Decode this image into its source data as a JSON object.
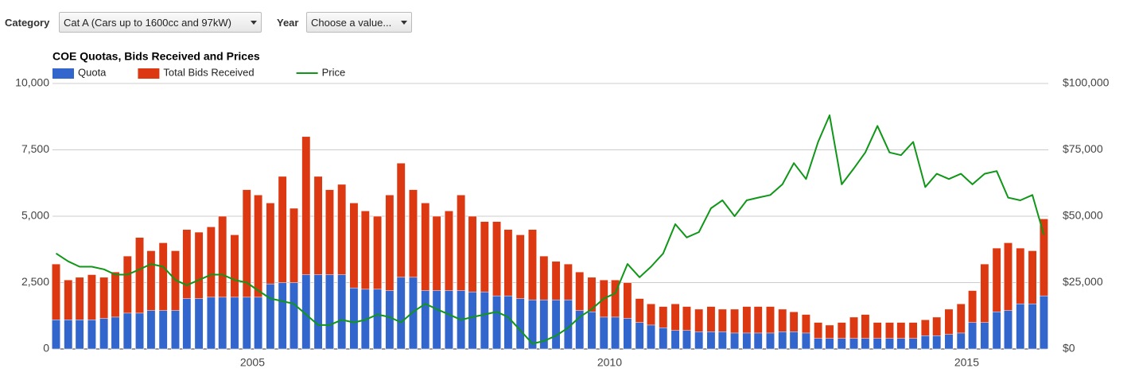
{
  "controls": {
    "category_label": "Category",
    "category_value": "Cat A (Cars up to 1600cc and 97kW)",
    "year_label": "Year",
    "year_value": "Choose a value..."
  },
  "chart_data": {
    "type": "bar-line",
    "title": "COE Quotas, Bids Received and Prices",
    "x": [
      2002.25,
      2002.42,
      2002.58,
      2002.75,
      2002.92,
      2003.08,
      2003.25,
      2003.42,
      2003.58,
      2003.75,
      2003.92,
      2004.08,
      2004.25,
      2004.42,
      2004.58,
      2004.75,
      2004.92,
      2005.08,
      2005.25,
      2005.42,
      2005.58,
      2005.75,
      2005.92,
      2006.08,
      2006.25,
      2006.42,
      2006.58,
      2006.75,
      2006.92,
      2007.08,
      2007.25,
      2007.42,
      2007.58,
      2007.75,
      2007.92,
      2008.08,
      2008.25,
      2008.42,
      2008.58,
      2008.75,
      2008.92,
      2009.08,
      2009.25,
      2009.42,
      2009.58,
      2009.75,
      2009.92,
      2010.08,
      2010.25,
      2010.42,
      2010.58,
      2010.75,
      2010.92,
      2011.08,
      2011.25,
      2011.42,
      2011.58,
      2011.75,
      2011.92,
      2012.08,
      2012.25,
      2012.42,
      2012.58,
      2012.75,
      2012.92,
      2013.08,
      2013.25,
      2013.42,
      2013.58,
      2013.75,
      2013.92,
      2014.08,
      2014.25,
      2014.42,
      2014.58,
      2014.75,
      2014.92,
      2015.08,
      2015.25,
      2015.42,
      2015.58,
      2015.75,
      2015.92,
      2016.08
    ],
    "series": [
      {
        "name": "Total Bids Received",
        "color": "#dc3912",
        "kind": "bar",
        "axis": "y",
        "values": [
          3200,
          2600,
          2700,
          2800,
          2700,
          2900,
          3500,
          4200,
          3700,
          4000,
          3700,
          4500,
          4400,
          4600,
          5000,
          4300,
          6000,
          5800,
          5500,
          6500,
          5300,
          8000,
          6500,
          6000,
          6200,
          5500,
          5200,
          5000,
          5800,
          7000,
          6000,
          5500,
          5000,
          5200,
          5800,
          5000,
          4800,
          4800,
          4500,
          4300,
          4500,
          3500,
          3300,
          3200,
          2900,
          2700,
          2600,
          2600,
          2500,
          1900,
          1700,
          1600,
          1700,
          1600,
          1500,
          1600,
          1500,
          1500,
          1600,
          1600,
          1600,
          1500,
          1400,
          1300,
          1000,
          900,
          1000,
          1200,
          1300,
          1000,
          1000,
          1000,
          1000,
          1100,
          1200,
          1500,
          1700,
          2200,
          3200,
          3800,
          4000,
          3800,
          3700,
          4900
        ]
      },
      {
        "name": "Quota",
        "color": "#3366cc",
        "kind": "bar",
        "axis": "y",
        "values": [
          1100,
          1100,
          1100,
          1100,
          1150,
          1200,
          1350,
          1350,
          1450,
          1450,
          1450,
          1900,
          1900,
          1950,
          1950,
          1950,
          1950,
          1950,
          2450,
          2500,
          2500,
          2800,
          2800,
          2800,
          2800,
          2300,
          2250,
          2250,
          2200,
          2700,
          2700,
          2200,
          2200,
          2200,
          2200,
          2150,
          2150,
          2000,
          2000,
          1900,
          1850,
          1850,
          1850,
          1850,
          1450,
          1400,
          1200,
          1200,
          1150,
          1000,
          900,
          800,
          700,
          700,
          650,
          650,
          650,
          600,
          600,
          600,
          600,
          650,
          650,
          600,
          400,
          400,
          400,
          400,
          400,
          400,
          400,
          400,
          400,
          500,
          500,
          550,
          600,
          1000,
          1000,
          1400,
          1450,
          1700,
          1700,
          2000
        ]
      },
      {
        "name": "Price",
        "color": "#109618",
        "kind": "line",
        "axis": "y2",
        "values": [
          36000,
          33000,
          31000,
          31000,
          30000,
          28000,
          28000,
          30000,
          32000,
          31000,
          26000,
          24000,
          26000,
          28000,
          28000,
          26000,
          25000,
          22000,
          19000,
          18000,
          17000,
          13000,
          9000,
          9000,
          11000,
          10000,
          11000,
          13000,
          12000,
          10000,
          14000,
          17000,
          15000,
          13000,
          11000,
          12000,
          13000,
          14000,
          12000,
          7000,
          2000,
          3000,
          5000,
          8000,
          12000,
          15000,
          19000,
          21000,
          32000,
          27000,
          31000,
          36000,
          47000,
          42000,
          44000,
          53000,
          56000,
          50000,
          56000,
          57000,
          58000,
          62000,
          70000,
          64000,
          78000,
          88000,
          62000,
          68000,
          74000,
          84000,
          74000,
          73000,
          78000,
          61000,
          66000,
          64000,
          66000,
          62000,
          66000,
          67000,
          57000,
          56000,
          58000,
          43000
        ]
      }
    ],
    "legend_order": [
      1,
      0,
      2
    ],
    "legend": "top",
    "xlim": [
      2002.2,
      2016.12
    ],
    "xticks": [
      2005,
      2010,
      2015
    ],
    "ylim": [
      0,
      10000
    ],
    "yticks": [
      0,
      {
        "value": 2500,
        "label": "2,500"
      },
      {
        "value": 5000,
        "label": "5,000"
      },
      {
        "value": 7500,
        "label": "7,500"
      },
      {
        "value": 10000,
        "label": "10,000"
      }
    ],
    "y2lim": [
      0,
      100000
    ],
    "y2ticks": [
      {
        "value": 0,
        "label": "$0"
      },
      {
        "value": 25000,
        "label": "$25,000"
      },
      {
        "value": 50000,
        "label": "$50,000"
      },
      {
        "value": 75000,
        "label": "$75,000"
      },
      {
        "value": 100000,
        "label": "$100,000"
      }
    ],
    "grid": true
  }
}
